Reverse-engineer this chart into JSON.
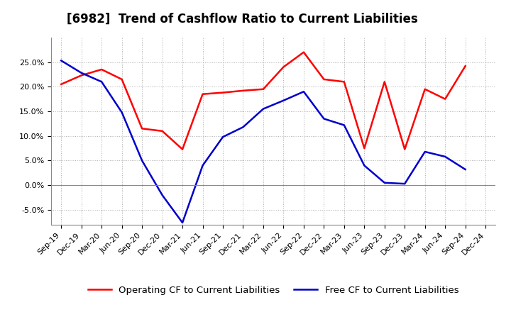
{
  "title": "[6982]  Trend of Cashflow Ratio to Current Liabilities",
  "x_labels": [
    "Sep-19",
    "Dec-19",
    "Mar-20",
    "Jun-20",
    "Sep-20",
    "Dec-20",
    "Mar-21",
    "Jun-21",
    "Sep-21",
    "Dec-21",
    "Mar-22",
    "Jun-22",
    "Sep-22",
    "Dec-22",
    "Mar-23",
    "Jun-23",
    "Sep-23",
    "Dec-23",
    "Mar-24",
    "Jun-24",
    "Sep-24",
    "Dec-24"
  ],
  "operating_cf": [
    0.205,
    0.223,
    0.235,
    0.215,
    0.115,
    0.11,
    0.073,
    0.185,
    0.188,
    0.192,
    0.195,
    0.24,
    0.27,
    0.215,
    0.21,
    0.075,
    0.21,
    0.073,
    0.195,
    0.175,
    0.242,
    null
  ],
  "free_cf": [
    0.253,
    0.228,
    0.21,
    0.148,
    0.05,
    -0.02,
    -0.076,
    0.04,
    0.098,
    0.118,
    0.155,
    0.172,
    0.19,
    0.135,
    0.122,
    0.04,
    0.005,
    0.003,
    0.068,
    0.058,
    0.032,
    null
  ],
  "operating_color": "#FF0000",
  "free_color": "#0000CC",
  "ylim": [
    -0.08,
    0.3
  ],
  "yticks": [
    -0.05,
    0.0,
    0.05,
    0.1,
    0.15,
    0.2,
    0.25
  ],
  "background_color": "#FFFFFF",
  "plot_bg_color": "#FFFFFF",
  "grid_color": "#999999",
  "legend_operating": "Operating CF to Current Liabilities",
  "legend_free": "Free CF to Current Liabilities",
  "title_fontsize": 12,
  "tick_fontsize": 8,
  "legend_fontsize": 9.5
}
